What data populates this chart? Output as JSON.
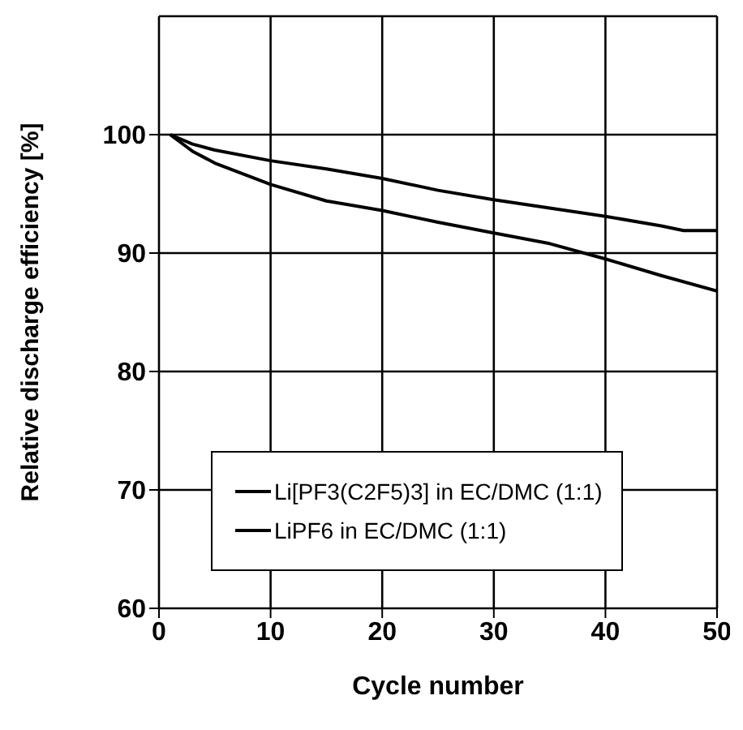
{
  "chart_data": {
    "type": "line",
    "xlabel": "Cycle number",
    "ylabel": "Relative discharge efficiency [%]",
    "xlim": [
      0,
      50
    ],
    "xticks": [
      0,
      10,
      20,
      30,
      40,
      50
    ],
    "ylim": [
      60,
      110
    ],
    "yticks": [
      60,
      70,
      80,
      90,
      100
    ],
    "grid": true,
    "legend": "bottom",
    "marker": "none",
    "line_style": "solid",
    "series": [
      {
        "name": "Li[PF3(C2F5)3] in EC/DMC (1:1)",
        "color": "#000000",
        "x": [
          1,
          3,
          5,
          10,
          15,
          20,
          25,
          30,
          35,
          40,
          45,
          47,
          50
        ],
        "values": [
          100,
          99.2,
          98.7,
          97.8,
          97.1,
          96.3,
          95.3,
          94.5,
          93.8,
          93.1,
          92.3,
          91.9,
          91.9
        ]
      },
      {
        "name": "LiPF6 in EC/DMC (1:1)",
        "color": "#000000",
        "x": [
          1,
          3,
          5,
          10,
          15,
          20,
          25,
          30,
          35,
          40,
          45,
          50
        ],
        "values": [
          100,
          98.6,
          97.6,
          95.8,
          94.4,
          93.6,
          92.6,
          91.7,
          90.8,
          89.5,
          88.1,
          86.8
        ]
      }
    ]
  }
}
